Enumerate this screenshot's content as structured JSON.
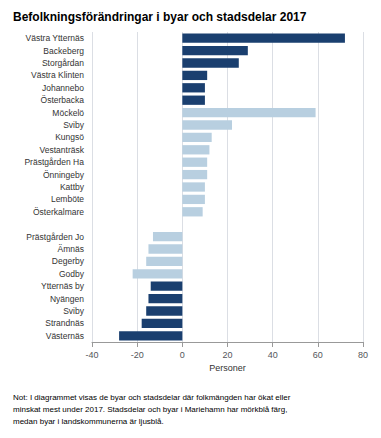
{
  "chart_data": {
    "type": "bar",
    "orientation": "horizontal",
    "title": "Befolkningsförändringar i byar och stadsdelar 2017",
    "note": "Not: I diagrammet visas de byar och stadsdelar där folkmängden har ökat eller\nminskat mest under 2017. Stadsdelar och byar i Mariehamn har mörkblå färg,\nmedan byar i landskommunerna är ljusblå.",
    "xlabel": "Personer",
    "categories": [
      "Västra Ytternäs",
      "Backeberg",
      "Storgårdan",
      "Västra Klinten",
      "Johannebo",
      "Österbacka",
      "Möckelö",
      "Sviby",
      "Kungsö",
      "Vestanträsk",
      "Prästgården Ha",
      "Önningeby",
      "Kattby",
      "Lemböte",
      "Österkalmare",
      null,
      "Prästgården Jo",
      "Ämnäs",
      "Degerby",
      "Godby",
      "Ytternäs by",
      "Nyängen",
      "Sviby",
      "Strandnäs",
      "Västernäs"
    ],
    "values": [
      72,
      29,
      25,
      11,
      10,
      10,
      59,
      22,
      13,
      12,
      11,
      11,
      10,
      10,
      9,
      0,
      -13,
      -15,
      -16,
      -22,
      -14,
      -15,
      -16,
      -18,
      -28
    ],
    "colors": [
      "#1a3f6f",
      "#1a3f6f",
      "#1a3f6f",
      "#1a3f6f",
      "#1a3f6f",
      "#1a3f6f",
      "#b8cfe0",
      "#b8cfe0",
      "#b8cfe0",
      "#b8cfe0",
      "#b8cfe0",
      "#b8cfe0",
      "#b8cfe0",
      "#b8cfe0",
      "#b8cfe0",
      "#ffffff",
      "#b8cfe0",
      "#b8cfe0",
      "#b8cfe0",
      "#b8cfe0",
      "#1a3f6f",
      "#1a3f6f",
      "#1a3f6f",
      "#1a3f6f",
      "#1a3f6f"
    ],
    "xlim": [
      -40,
      80
    ],
    "xticks": [
      -40,
      -20,
      0,
      20,
      40,
      60,
      80
    ],
    "grid": true
  }
}
